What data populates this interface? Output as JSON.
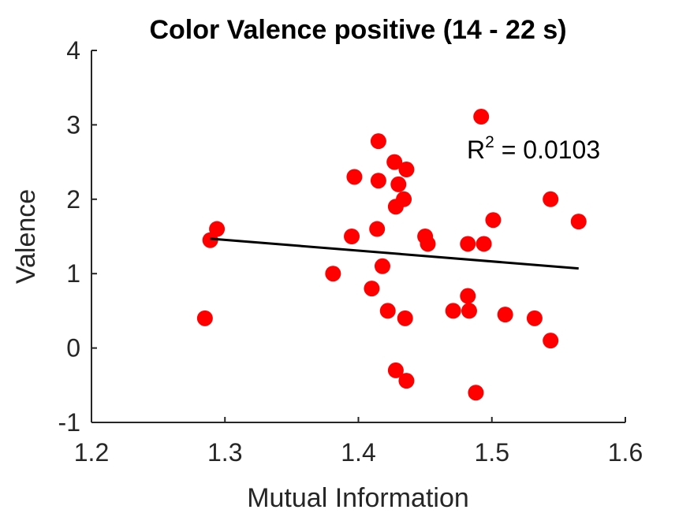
{
  "chart_data": {
    "type": "scatter",
    "title": "Color Valence positive (14 - 22 s)",
    "xlabel": "Mutual Information",
    "ylabel": "Valence",
    "xlim": [
      1.2,
      1.6
    ],
    "ylim": [
      -1,
      4
    ],
    "xticks": [
      "1.2",
      "1.3",
      "1.4",
      "1.5",
      "1.6"
    ],
    "yticks": [
      "-1",
      "0",
      "1",
      "2",
      "3",
      "4"
    ],
    "grid": false,
    "legend": "none",
    "annotation": {
      "prefix": "R",
      "sup": "2",
      "suffix": " = 0.0103"
    },
    "colors": {
      "points": "#ff0000",
      "fit": "#000000",
      "axes": "#262626"
    },
    "series": [
      {
        "points": [
          [
            1.285,
            0.4
          ],
          [
            1.289,
            1.45
          ],
          [
            1.294,
            1.6
          ],
          [
            1.381,
            1.0
          ],
          [
            1.395,
            1.5
          ],
          [
            1.397,
            2.3
          ],
          [
            1.41,
            0.8
          ],
          [
            1.414,
            1.6
          ],
          [
            1.415,
            2.25
          ],
          [
            1.415,
            2.78
          ],
          [
            1.418,
            1.1
          ],
          [
            1.422,
            0.5
          ],
          [
            1.427,
            2.5
          ],
          [
            1.428,
            1.9
          ],
          [
            1.428,
            -0.3
          ],
          [
            1.43,
            2.2
          ],
          [
            1.434,
            2.0
          ],
          [
            1.435,
            0.4
          ],
          [
            1.436,
            2.4
          ],
          [
            1.436,
            -0.44
          ],
          [
            1.45,
            1.5
          ],
          [
            1.452,
            1.4
          ],
          [
            1.471,
            0.5
          ],
          [
            1.482,
            1.4
          ],
          [
            1.482,
            0.7
          ],
          [
            1.483,
            0.5
          ],
          [
            1.488,
            -0.6
          ],
          [
            1.492,
            3.11
          ],
          [
            1.494,
            1.4
          ],
          [
            1.501,
            1.72
          ],
          [
            1.51,
            0.45
          ],
          [
            1.532,
            0.4
          ],
          [
            1.544,
            2.0
          ],
          [
            1.544,
            0.1
          ],
          [
            1.565,
            1.7
          ]
        ]
      }
    ],
    "fit_line": {
      "x": [
        1.289,
        1.565
      ],
      "y": [
        1.47,
        1.07
      ]
    }
  }
}
